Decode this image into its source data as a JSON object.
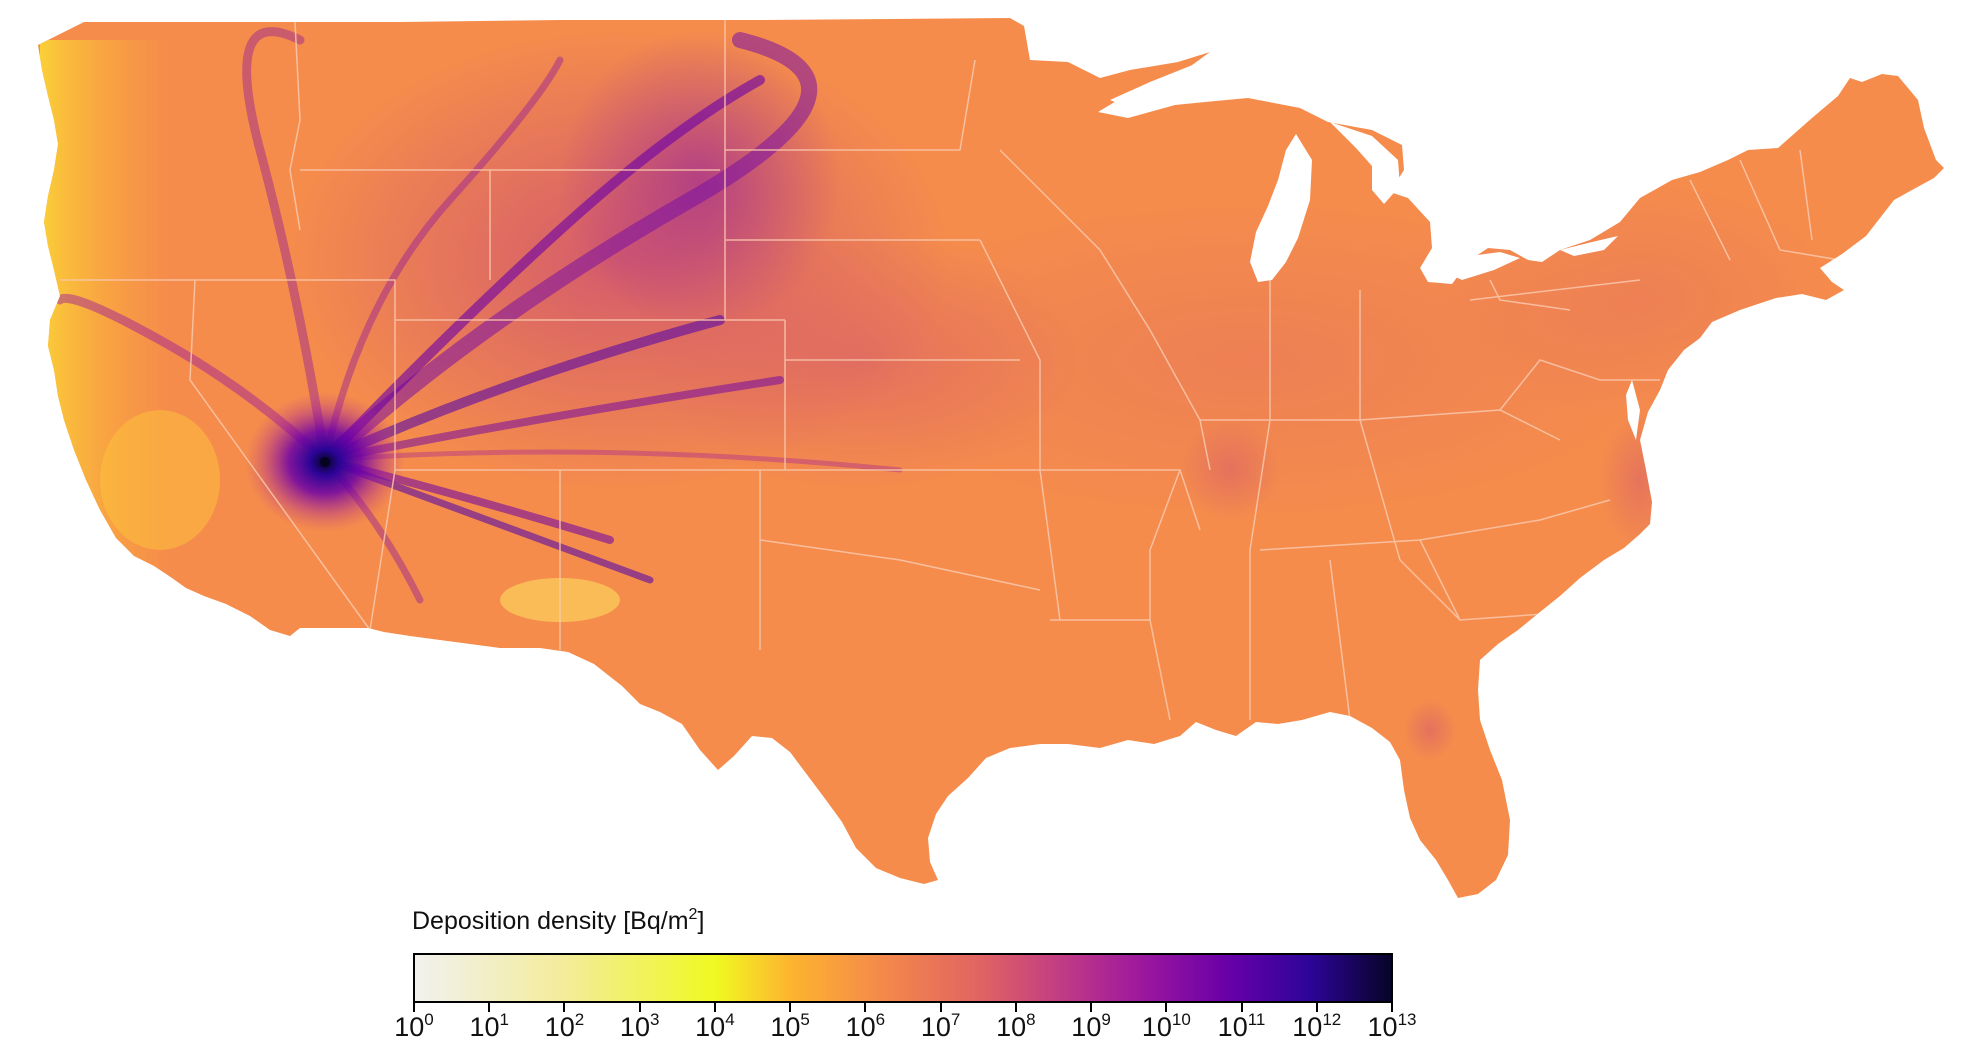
{
  "map": {
    "region": "contiguous-united-states",
    "land_fill": "#f58c4c",
    "border_color": "#f9c8ad",
    "water_color": "#ffffff",
    "hotspot": {
      "name": "source-point",
      "color": "#0d0887"
    }
  },
  "colorbar": {
    "title_prefix": "Deposition density [Bq/m",
    "title_exponent": "2",
    "title_suffix": "]",
    "scale": "log",
    "colormap": "plasma-reversed",
    "range": [
      0,
      13
    ],
    "gradient_stops": [
      {
        "value": 0,
        "color": "#f2f1ee"
      },
      {
        "value": 2,
        "color": "#f3ec9a"
      },
      {
        "value": 4,
        "color": "#f0f921"
      },
      {
        "value": 5,
        "color": "#fdb42f"
      },
      {
        "value": 6.2,
        "color": "#f48a4a"
      },
      {
        "value": 7.5,
        "color": "#e16462"
      },
      {
        "value": 8.6,
        "color": "#c13c84"
      },
      {
        "value": 9.7,
        "color": "#9c179e"
      },
      {
        "value": 10.8,
        "color": "#6a00a8"
      },
      {
        "value": 11.9,
        "color": "#2e049a"
      },
      {
        "value": 13,
        "color": "#070428"
      }
    ],
    "ticks": [
      {
        "base": "10",
        "exp": "0"
      },
      {
        "base": "10",
        "exp": "1"
      },
      {
        "base": "10",
        "exp": "2"
      },
      {
        "base": "10",
        "exp": "3"
      },
      {
        "base": "10",
        "exp": "4"
      },
      {
        "base": "10",
        "exp": "5"
      },
      {
        "base": "10",
        "exp": "6"
      },
      {
        "base": "10",
        "exp": "7"
      },
      {
        "base": "10",
        "exp": "8"
      },
      {
        "base": "10",
        "exp": "9"
      },
      {
        "base": "10",
        "exp": "10"
      },
      {
        "base": "10",
        "exp": "11"
      },
      {
        "base": "10",
        "exp": "12"
      },
      {
        "base": "10",
        "exp": "13"
      }
    ]
  }
}
